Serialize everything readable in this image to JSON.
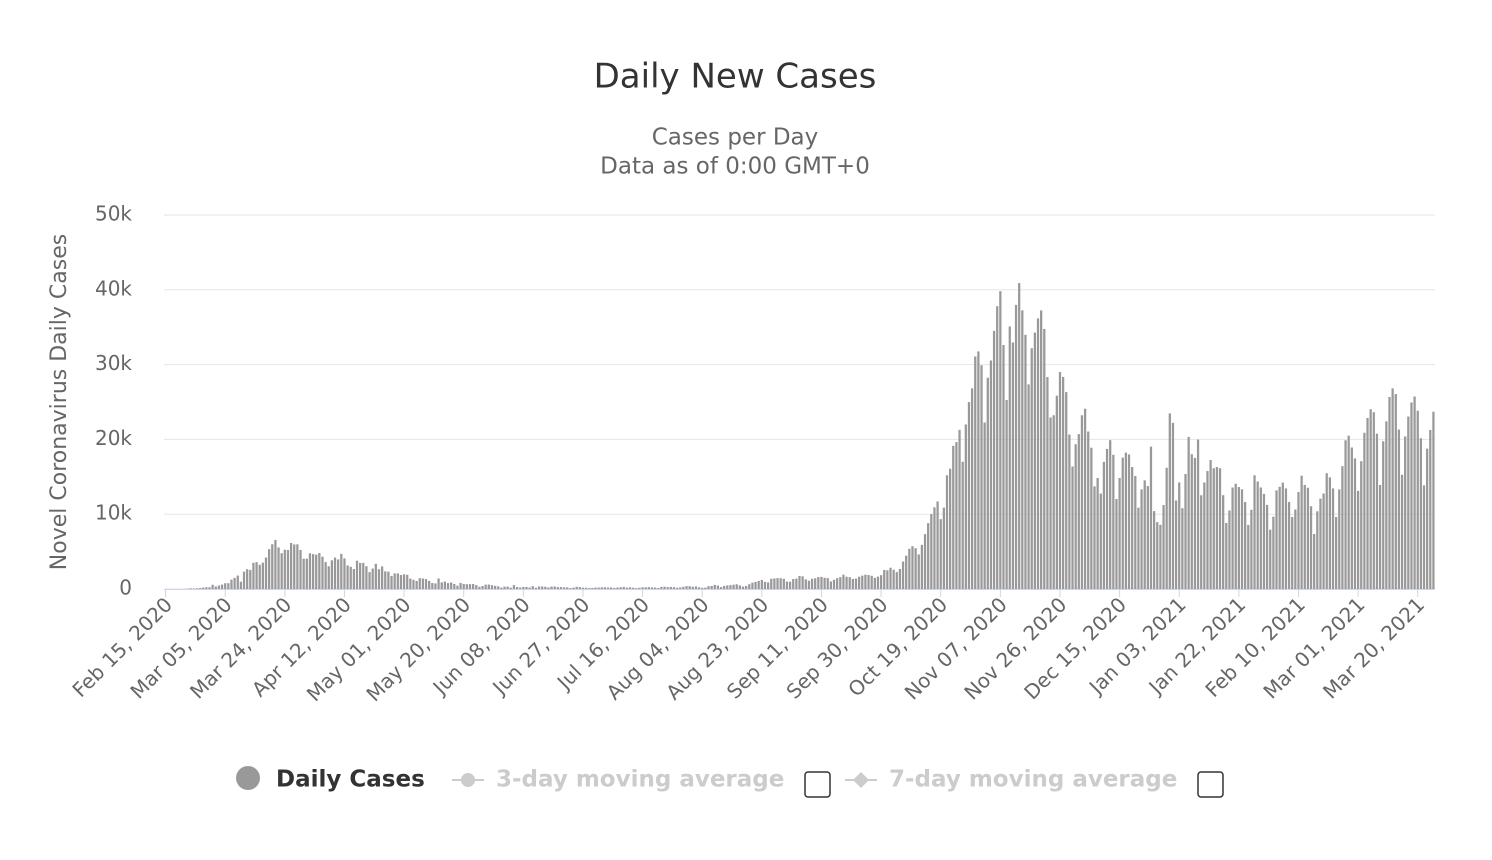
{
  "chart_data": {
    "type": "bar",
    "title": "Daily New Cases",
    "subtitle": [
      "Cases per Day",
      "Data as of 0:00 GMT+0"
    ],
    "y_label": "Novel Coronavirus Daily Cases",
    "ylim": [
      0,
      50000
    ],
    "yticks": [
      0,
      {
        "value": 10000,
        "label": "10k"
      },
      {
        "value": 20000,
        "label": "20k"
      },
      {
        "value": 30000,
        "label": "30k"
      },
      {
        "value": 40000,
        "label": "40k"
      },
      {
        "value": 50000,
        "label": "50k"
      }
    ],
    "grid": true,
    "categories": [
      "Feb 15, 2020",
      null,
      null,
      null,
      null,
      null,
      null,
      null,
      null,
      null,
      null,
      null,
      null,
      null,
      null,
      null,
      null,
      null,
      null,
      "Mar 05, 2020",
      null,
      null,
      null,
      null,
      null,
      null,
      null,
      null,
      null,
      null,
      null,
      null,
      null,
      null,
      null,
      null,
      null,
      null,
      "Mar 24, 2020",
      null,
      null,
      null,
      null,
      null,
      null,
      null,
      null,
      null,
      null,
      null,
      null,
      null,
      null,
      null,
      null,
      null,
      null,
      "Apr 12, 2020",
      null,
      null,
      null,
      null,
      null,
      null,
      null,
      null,
      null,
      null,
      null,
      null,
      null,
      null,
      null,
      null,
      null,
      null,
      "May 01, 2020",
      null,
      null,
      null,
      null,
      null,
      null,
      null,
      null,
      null,
      null,
      null,
      null,
      null,
      null,
      null,
      null,
      null,
      null,
      "May 20, 2020",
      null,
      null,
      null,
      null,
      null,
      null,
      null,
      null,
      null,
      null,
      null,
      null,
      null,
      null,
      null,
      null,
      null,
      null,
      "Jun 08, 2020",
      null,
      null,
      null,
      null,
      null,
      null,
      null,
      null,
      null,
      null,
      null,
      null,
      null,
      null,
      null,
      null,
      null,
      null,
      "Jun 27, 2020",
      null,
      null,
      null,
      null,
      null,
      null,
      null,
      null,
      null,
      null,
      null,
      null,
      null,
      null,
      null,
      null,
      null,
      null,
      "Jul 16, 2020",
      null,
      null,
      null,
      null,
      null,
      null,
      null,
      null,
      null,
      null,
      null,
      null,
      null,
      null,
      null,
      null,
      null,
      null,
      "Aug 04, 2020",
      null,
      null,
      null,
      null,
      null,
      null,
      null,
      null,
      null,
      null,
      null,
      null,
      null,
      null,
      null,
      null,
      null,
      null,
      "Aug 23, 2020",
      null,
      null,
      null,
      null,
      null,
      null,
      null,
      null,
      null,
      null,
      null,
      null,
      null,
      null,
      null,
      null,
      null,
      null,
      "Sep 11, 2020",
      null,
      null,
      null,
      null,
      null,
      null,
      null,
      null,
      null,
      null,
      null,
      null,
      null,
      null,
      null,
      null,
      null,
      null,
      "Sep 30, 2020",
      null,
      null,
      null,
      null,
      null,
      null,
      null,
      null,
      null,
      null,
      null,
      null,
      null,
      null,
      null,
      null,
      null,
      null,
      "Oct 19, 2020",
      null,
      null,
      null,
      null,
      null,
      null,
      null,
      null,
      null,
      null,
      null,
      null,
      null,
      null,
      null,
      null,
      null,
      null,
      "Nov 07, 2020",
      null,
      null,
      null,
      null,
      null,
      null,
      null,
      null,
      null,
      null,
      null,
      null,
      null,
      null,
      null,
      null,
      null,
      null,
      "Nov 26, 2020",
      null,
      null,
      null,
      null,
      null,
      null,
      null,
      null,
      null,
      null,
      null,
      null,
      null,
      null,
      null,
      null,
      null,
      null,
      "Dec 15, 2020",
      null,
      null,
      null,
      null,
      null,
      null,
      null,
      null,
      null,
      null,
      null,
      null,
      null,
      null,
      null,
      null,
      null,
      null,
      "Jan 03, 2021",
      null,
      null,
      null,
      null,
      null,
      null,
      null,
      null,
      null,
      null,
      null,
      null,
      null,
      null,
      null,
      null,
      null,
      null,
      "Jan 22, 2021",
      null,
      null,
      null,
      null,
      null,
      null,
      null,
      null,
      null,
      null,
      null,
      null,
      null,
      null,
      null,
      null,
      null,
      null,
      "Feb 10, 2021",
      null,
      null,
      null,
      null,
      null,
      null,
      null,
      null,
      null,
      null,
      null,
      null,
      null,
      null,
      null,
      null,
      null,
      null,
      "Mar 01, 2021",
      null,
      null,
      null,
      null,
      null,
      null,
      null,
      null,
      null,
      null,
      null,
      null,
      null,
      null,
      null,
      null,
      null,
      null,
      "Mar 20, 2021",
      null,
      null,
      null,
      null,
      null
    ],
    "series": [
      {
        "name": "Daily Cases",
        "color": "#999999",
        "values": [
          0,
          0,
          0,
          0,
          0,
          0,
          17,
          42,
          93,
          74,
          93,
          131,
          202,
          233,
          240,
          566,
          342,
          466,
          587,
          769,
          778,
          1247,
          1492,
          1797,
          977,
          2313,
          2651,
          2547,
          3497,
          3590,
          3233,
          3526,
          4207,
          5322,
          5986,
          6557,
          5560,
          4789,
          5249,
          5210,
          6153,
          5959,
          5974,
          5217,
          4050,
          4053,
          4782,
          4668,
          4585,
          4805,
          4316,
          3599,
          3039,
          3836,
          4204,
          3951,
          4694,
          4092,
          3153,
          2972,
          2667,
          3786,
          3493,
          3491,
          3047,
          2256,
          2729,
          3370,
          2646,
          3021,
          2357,
          2324,
          1739,
          2091,
          2086,
          1872,
          1965,
          1900,
          1389,
          1221,
          1075,
          1444,
          1401,
          1327,
          1083,
          802,
          744,
          1402,
          888,
          992,
          789,
          875,
          675,
          451,
          813,
          665,
          642,
          652,
          669,
          531,
          300,
          397,
          584,
          593,
          516,
          416,
          355,
          178,
          318,
          321,
          177,
          518,
          270,
          197,
          280,
          283,
          202,
          379,
          163,
          346,
          338,
          301,
          210,
          328,
          333,
          251,
          262,
          224,
          218,
          122,
          190,
          296,
          259,
          175,
          174,
          126,
          142,
          187,
          201,
          223,
          235,
          192,
          208,
          138,
          193,
          229,
          276,
          188,
          234,
          169,
          114,
          162,
          230,
          233,
          249,
          219,
          190,
          129,
          282,
          306,
          252,
          275,
          255,
          170,
          212,
          289,
          386,
          379,
          295,
          347,
          238,
          159,
          190,
          384,
          402,
          552,
          463,
          259,
          412,
          481,
          523,
          574,
          629,
          479,
          320,
          403,
          642,
          845,
          947,
          1071,
          1210,
          953,
          878,
          1367,
          1411,
          1462,
          1444,
          1365,
          996,
          978,
          1326,
          1397,
          1733,
          1695,
          1297,
          1108,
          1370,
          1434,
          1597,
          1616,
          1501,
          1458,
          1008,
          1229,
          1452,
          1585,
          1907,
          1638,
          1587,
          1350,
          1392,
          1640,
          1786,
          1912,
          1869,
          1766,
          1494,
          1648,
          1851,
          2548,
          2499,
          2844,
          2578,
          2257,
          2677,
          3678,
          4458,
          5372,
          5724,
          5456,
          4619,
          5901,
          7332,
          8804,
          10010,
          10925,
          11705,
          9338,
          10874,
          15199,
          16079,
          19143,
          19644,
          21273,
          17012,
          21994,
          24991,
          26831,
          31084,
          31758,
          29907,
          22253,
          28244,
          30550,
          34505,
          37809,
          39811,
          32616,
          25271,
          35098,
          32961,
          37978,
          40902,
          37255,
          33979,
          27354,
          32191,
          34283,
          36176,
          37242,
          34767,
          28337,
          22930,
          23232,
          25853,
          29003,
          28352,
          26323,
          20648,
          16377,
          19350,
          20709,
          23225,
          24099,
          21052,
          18887,
          13720,
          14842,
          12756,
          16999,
          18727,
          19903,
          17938,
          12030,
          14844,
          17572,
          18236,
          17992,
          16308,
          15104,
          10872,
          13318,
          14522,
          13755,
          19037,
          10407,
          8937,
          8585,
          11224,
          16202,
          23477,
          22211,
          11831,
          14245,
          10800,
          15378,
          20331,
          18020,
          17533,
          19978,
          12532,
          14242,
          15774,
          17246,
          16146,
          16310,
          16146,
          12545,
          8825,
          10497,
          13571,
          14078,
          13633,
          13331,
          11629,
          8561,
          10593,
          15204,
          14372,
          13574,
          12715,
          11252,
          7925,
          9660,
          13189,
          13659,
          14218,
          13442,
          11641,
          9630,
          10630,
          12956,
          15146,
          13908,
          13532,
          11068,
          7351,
          10386,
          12074,
          12765,
          15479,
          14931,
          13452,
          9630,
          13314,
          16424,
          19886,
          20499,
          18916,
          17455,
          13114,
          17083,
          20884,
          22865,
          24036,
          23641,
          20765,
          13902,
          19749,
          22409,
          25673,
          26824,
          26062,
          21315,
          15267,
          20396,
          23059,
          24935,
          25735,
          23832,
          20159,
          13846,
          18765,
          21267,
          23696
        ]
      }
    ],
    "inactive_legend": [
      "3-day moving average",
      "7-day moving average"
    ]
  }
}
